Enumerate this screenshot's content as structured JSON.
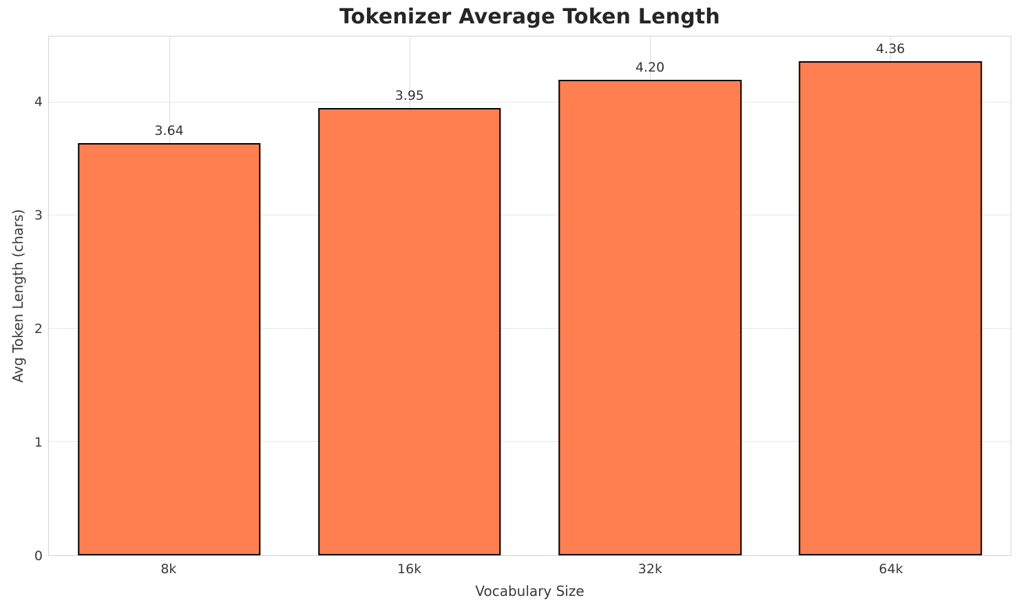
{
  "chart_data": {
    "type": "bar",
    "title": "Tokenizer Average Token Length",
    "xlabel": "Vocabulary Size",
    "ylabel": "Avg Token Length (chars)",
    "categories": [
      "8k",
      "16k",
      "32k",
      "64k"
    ],
    "values": [
      3.64,
      3.95,
      4.2,
      4.36
    ],
    "value_labels": [
      "3.64",
      "3.95",
      "4.20",
      "4.36"
    ],
    "yticks": [
      0,
      1,
      2,
      3,
      4
    ],
    "ytick_labels": [
      "0",
      "1",
      "2",
      "3",
      "4"
    ],
    "ylim": [
      0,
      4.58
    ],
    "grid": true,
    "legend": false,
    "colors": {
      "bar_fill": "#FF7F50",
      "bar_edge": "#000000",
      "grid_h": "#e7e7e7",
      "grid_v": "#dedede",
      "spine": "#d2d2d2",
      "title_text": "#262626",
      "tick_text": "#3a3a3a"
    }
  }
}
